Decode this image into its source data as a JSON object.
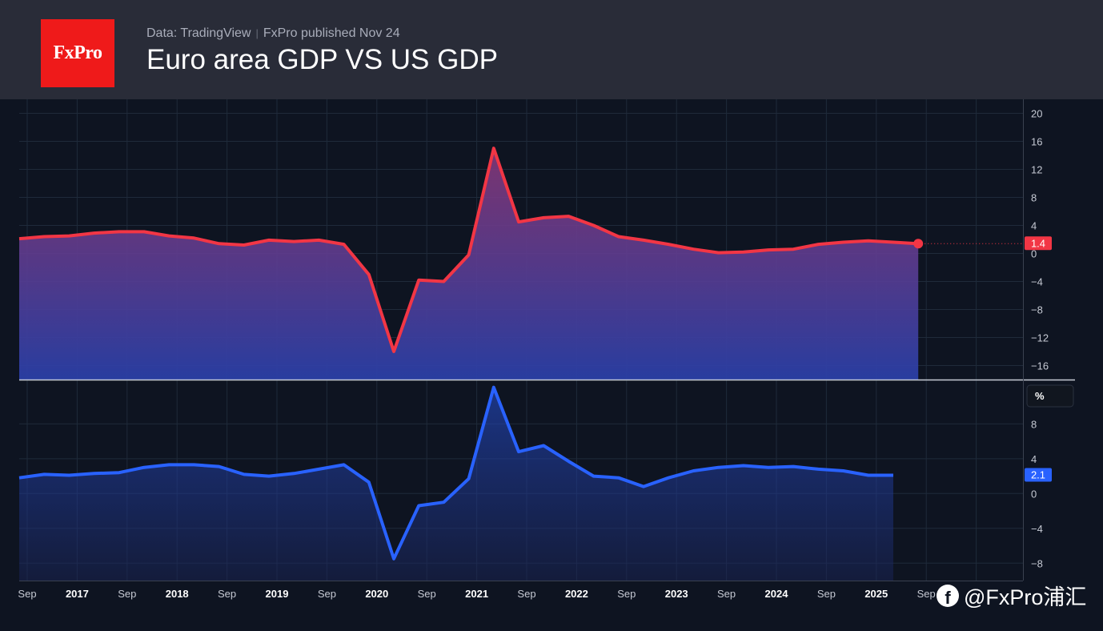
{
  "header": {
    "logo_text": "FxPro",
    "source": "Data: TradingView",
    "publisher": "FxPro published Nov 24",
    "title": "Euro area GDP VS US GDP"
  },
  "watermark": "@FxPro浦汇",
  "colors": {
    "background": "#0e1421",
    "header_bg": "#292c38",
    "logo_red": "#ef1a1a",
    "euro_line": "#f23645",
    "us_line": "#2962ff",
    "grid": "#1f2a3a"
  },
  "chart_data": [
    {
      "type": "area",
      "panel": "top",
      "series": [
        {
          "values": [
            2.1,
            2.4,
            2.5,
            2.9,
            3.1,
            3.1,
            2.5,
            2.2,
            1.4,
            1.2,
            1.9,
            1.7,
            1.9,
            1.3,
            -3.0,
            -14.0,
            -3.8,
            -4.0,
            -0.2,
            15.0,
            4.5,
            5.1,
            5.3,
            4.0,
            2.4,
            1.9,
            1.3,
            0.6,
            0.1,
            0.2,
            0.5,
            0.6,
            1.3,
            1.6,
            1.8,
            1.6,
            1.4
          ]
        }
      ],
      "x_start": "2016-09",
      "x_step": "quarter",
      "last_value_label": "1.4",
      "ylim": [
        -18,
        22
      ],
      "yticks": [
        "20",
        "16",
        "12",
        "8",
        "4",
        "0",
        "−4",
        "−8",
        "−12",
        "−16"
      ],
      "grid": true
    },
    {
      "type": "area",
      "panel": "bottom",
      "series": [
        {
          "values": [
            1.8,
            2.2,
            2.1,
            2.3,
            2.4,
            3.0,
            3.3,
            3.3,
            3.1,
            2.2,
            2.0,
            2.3,
            2.8,
            3.3,
            1.3,
            -7.5,
            -1.4,
            -1.0,
            1.7,
            12.2,
            4.8,
            5.5,
            3.7,
            2.0,
            1.8,
            0.8,
            1.8,
            2.6,
            3.0,
            3.2,
            3.0,
            3.1,
            2.8,
            2.6,
            2.1,
            2.1
          ]
        }
      ],
      "x_start": "2016-09",
      "x_step": "quarter",
      "last_value_label": "2.1",
      "unit_label": "%",
      "ylim": [
        -10,
        13
      ],
      "yticks": [
        "8",
        "4",
        "0",
        "−4",
        "−8"
      ],
      "grid": true
    }
  ],
  "x_axis": {
    "ticks": [
      "Sep",
      "2017",
      "Sep",
      "2018",
      "Sep",
      "2019",
      "Sep",
      "2020",
      "Sep",
      "2021",
      "Sep",
      "2022",
      "Sep",
      "2023",
      "Sep",
      "2024",
      "Sep",
      "2025",
      "Sep"
    ],
    "bold_years": true
  }
}
